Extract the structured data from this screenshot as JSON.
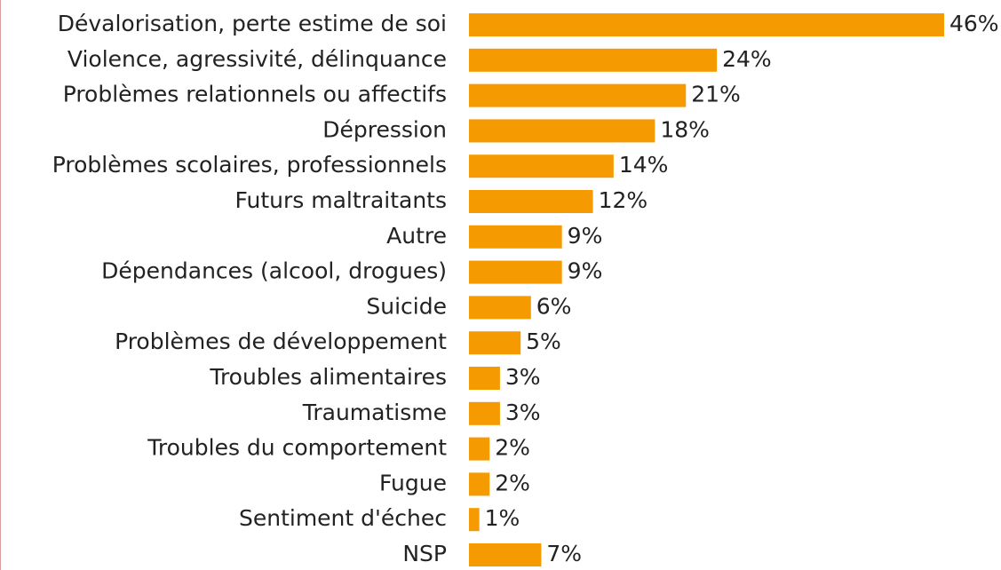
{
  "chart_data": {
    "type": "barh",
    "categories": [
      "Dévalorisation, perte estime de soi",
      "Violence, agressivité, délinquance",
      "Problèmes relationnels ou affectifs",
      "Dépression",
      "Problèmes scolaires, professionnels",
      "Futurs maltraitants",
      "Autre",
      "Dépendances (alcool, drogues)",
      "Suicide",
      "Problèmes de développement",
      "Troubles alimentaires",
      "Traumatisme",
      "Troubles du comportement",
      "Fugue",
      "Sentiment d'échec",
      "NSP"
    ],
    "values": [
      46,
      24,
      21,
      18,
      14,
      12,
      9,
      9,
      6,
      5,
      3,
      3,
      2,
      2,
      1,
      7
    ],
    "value_labels": [
      "46%",
      "24%",
      "21%",
      "18%",
      "14%",
      "12%",
      "9%",
      "9%",
      "6%",
      "5%",
      "3%",
      "3%",
      "2%",
      "2%",
      "1%",
      "7%"
    ],
    "color": "#f59a00"
  }
}
